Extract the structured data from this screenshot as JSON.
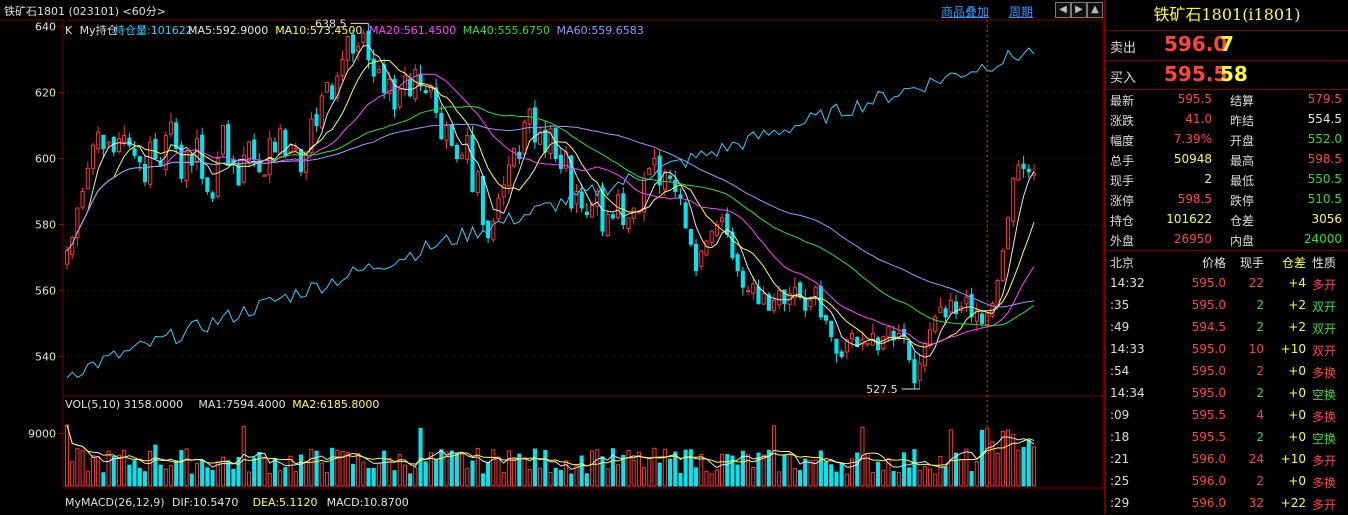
{
  "title": "铁矿石1801 (023101) <60分>",
  "toolbar": {
    "overlay_label": "商品叠加",
    "period_label": "周期"
  },
  "main_panel": {
    "prefix": "K",
    "indicator": "My持仓",
    "labels": [
      {
        "text": "持仓量:101622",
        "color": "#33ccff"
      },
      {
        "text": "MA5:592.9000",
        "color": "#e8e8e8"
      },
      {
        "text": "MA10:573.4500",
        "color": "#ffff44"
      },
      {
        "text": "MA20:561.4500",
        "color": "#ff44ff"
      },
      {
        "text": "MA40:555.6750",
        "color": "#33dd33"
      },
      {
        "text": "MA60:559.6583",
        "color": "#9999ff"
      }
    ],
    "y_ticks": [
      {
        "label": "640",
        "value": 640
      },
      {
        "label": "620",
        "value": 620
      },
      {
        "label": "600",
        "value": 600
      },
      {
        "label": "580",
        "value": 580
      },
      {
        "label": "560",
        "value": 560
      },
      {
        "label": "540",
        "value": 540
      }
    ],
    "high_marker": "638.5",
    "low_marker": "527.5"
  },
  "vol_panel": {
    "labels": [
      {
        "text": "VOL(5,10) 3158.0000",
        "color": "#e0e0e0"
      },
      {
        "text": "MA1:7594.4000",
        "color": "#e0e0e0"
      },
      {
        "text": "MA2:6185.8000",
        "color": "#ffff44"
      }
    ],
    "y_tick": "9000"
  },
  "macd_panel": {
    "labels": [
      {
        "text": "MyMACD(26,12,9)",
        "color": "#e0e0e0"
      },
      {
        "text": "DIF:10.5470",
        "color": "#e8e8e8"
      },
      {
        "text": "DEA:5.1120",
        "color": "#ffff44"
      },
      {
        "text": "MACD:10.8700",
        "color": "#e8e8e8"
      }
    ]
  },
  "colors": {
    "up": "#ff3333",
    "down": "#00e5ee",
    "grid": "#7a0000"
  },
  "quote": {
    "title": "铁矿石1801(i1801)",
    "ask": {
      "label": "卖出",
      "price": "596.0",
      "volume": "7"
    },
    "bid": {
      "label": "买入",
      "price": "595.5",
      "volume": "58"
    },
    "rows": [
      {
        "l1": "最新",
        "v1": "595.5",
        "c1": "red",
        "l2": "结算",
        "v2": "579.5",
        "c2": "red"
      },
      {
        "l1": "涨跌",
        "v1": "41.0",
        "c1": "red",
        "l2": "昨结",
        "v2": "554.5",
        "c2": "white"
      },
      {
        "l1": "幅度",
        "v1": "7.39%",
        "c1": "red",
        "l2": "开盘",
        "v2": "552.0",
        "c2": "green"
      },
      {
        "l1": "总手",
        "v1": "50948",
        "c1": "yellow",
        "l2": "最高",
        "v2": "598.5",
        "c2": "red"
      },
      {
        "l1": "现手",
        "v1": "2",
        "c1": "yellow",
        "l2": "最低",
        "v2": "550.5",
        "c2": "green"
      },
      {
        "l1": "涨停",
        "v1": "598.5",
        "c1": "red",
        "l2": "跌停",
        "v2": "510.5",
        "c2": "green"
      },
      {
        "l1": "持仓",
        "v1": "101622",
        "c1": "yellow",
        "l2": "仓差",
        "v2": "3056",
        "c2": "yellow"
      },
      {
        "l1": "外盘",
        "v1": "26950",
        "c1": "red",
        "l2": "内盘",
        "v2": "24000",
        "c2": "green"
      }
    ],
    "tick_header": [
      "北京",
      "价格",
      "现手",
      "仓差",
      "性质"
    ],
    "ticks": [
      {
        "time": "14:32",
        "price": "595.0",
        "vol": "22",
        "oi": "+4",
        "nature": "多开",
        "pc": "red",
        "vc": "red",
        "nc": "red"
      },
      {
        "time": ":35",
        "price": "595.0",
        "vol": "2",
        "oi": "+2",
        "nature": "双开",
        "pc": "red",
        "vc": "green",
        "nc": "green"
      },
      {
        "time": ":49",
        "price": "594.5",
        "vol": "2",
        "oi": "+2",
        "nature": "双开",
        "pc": "red",
        "vc": "green",
        "nc": "green"
      },
      {
        "time": "14:33",
        "price": "595.0",
        "vol": "10",
        "oi": "+10",
        "nature": "双开",
        "pc": "red",
        "vc": "red",
        "nc": "red"
      },
      {
        "time": ":54",
        "price": "595.0",
        "vol": "2",
        "oi": "+0",
        "nature": "多换",
        "pc": "red",
        "vc": "red",
        "nc": "red"
      },
      {
        "time": "14:34",
        "price": "595.0",
        "vol": "2",
        "oi": "+0",
        "nature": "空换",
        "pc": "red",
        "vc": "green",
        "nc": "green"
      },
      {
        "time": ":09",
        "price": "595.5",
        "vol": "4",
        "oi": "+0",
        "nature": "多换",
        "pc": "red",
        "vc": "red",
        "nc": "red"
      },
      {
        "time": ":18",
        "price": "595.5",
        "vol": "2",
        "oi": "+0",
        "nature": "空换",
        "pc": "red",
        "vc": "green",
        "nc": "green"
      },
      {
        "time": ":21",
        "price": "596.0",
        "vol": "24",
        "oi": "+10",
        "nature": "多开",
        "pc": "red",
        "vc": "red",
        "nc": "red"
      },
      {
        "time": ":25",
        "price": "596.0",
        "vol": "2",
        "oi": "+0",
        "nature": "多换",
        "pc": "red",
        "vc": "red",
        "nc": "red"
      },
      {
        "time": ":29",
        "price": "596.0",
        "vol": "32",
        "oi": "+22",
        "nature": "多开",
        "pc": "red",
        "vc": "red",
        "nc": "red"
      }
    ]
  },
  "chart_data": {
    "type": "candlestick",
    "y_range": [
      528,
      642
    ],
    "closes": [
      572,
      576,
      585,
      590,
      597,
      604,
      608,
      603,
      605,
      602,
      606,
      607,
      604,
      601,
      599,
      593,
      605,
      600,
      598,
      607,
      611,
      603,
      594,
      602,
      598,
      606,
      594,
      590,
      588,
      600,
      610,
      598,
      598,
      592,
      601,
      605,
      600,
      596,
      595,
      606,
      602,
      609,
      601,
      604,
      603,
      596,
      602,
      612,
      610,
      619,
      623,
      618,
      625,
      630,
      637,
      632,
      634,
      638,
      630,
      625,
      627,
      620,
      624,
      615,
      621,
      625,
      619,
      627,
      622,
      620,
      622,
      614,
      606,
      610,
      604,
      600,
      601,
      607,
      590,
      596,
      580,
      576,
      581,
      588,
      592,
      598,
      603,
      600,
      611,
      615,
      605,
      608,
      602,
      609,
      600,
      597,
      602,
      585,
      590,
      585,
      583,
      586,
      590,
      578,
      583,
      582,
      589,
      580,
      582,
      585,
      584,
      594,
      597,
      600,
      592,
      596,
      594,
      590,
      588,
      579,
      574,
      566,
      572,
      575,
      578,
      580,
      582,
      577,
      570,
      566,
      561,
      560,
      562,
      556,
      559,
      554,
      557,
      560,
      556,
      559,
      561,
      558,
      554,
      557,
      561,
      552,
      551,
      546,
      541,
      540,
      545,
      547,
      543,
      545,
      544,
      547,
      542,
      546,
      549,
      545,
      547,
      546,
      539,
      532,
      538,
      544,
      548,
      552,
      555,
      552,
      557,
      553,
      555,
      558,
      552,
      554,
      550,
      553,
      556,
      563,
      572,
      582,
      594,
      598,
      597,
      596,
      595.5
    ],
    "vol_ma": [
      7594.4,
      6185.8
    ],
    "max_vol": 12000
  }
}
